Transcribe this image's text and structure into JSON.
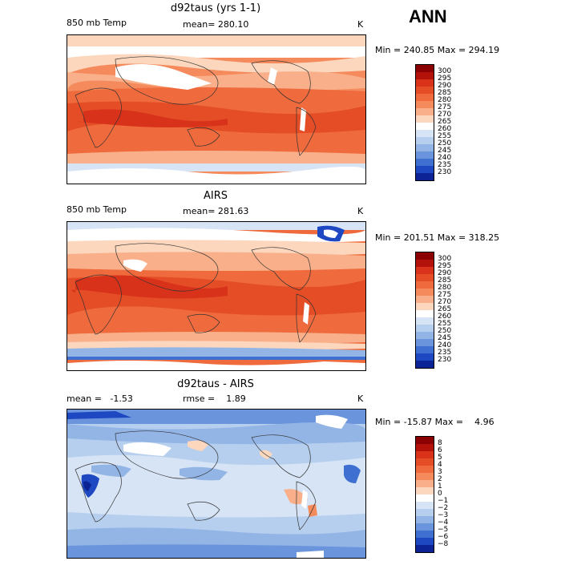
{
  "season_label": "ANN",
  "panels": [
    {
      "title": "d92taus (yrs 1-1)",
      "left_label": "850 mb Temp",
      "center_label": "mean= 280.10",
      "unit": "K",
      "minmax": "Min = 240.85 Max = 294.19",
      "colorbar": {
        "labels": [
          "300",
          "295",
          "290",
          "285",
          "280",
          "275",
          "270",
          "265",
          "260",
          "255",
          "250",
          "245",
          "240",
          "235",
          "230"
        ],
        "colors": [
          "#8b0000",
          "#b3120a",
          "#d8321a",
          "#e44d26",
          "#ef6a3c",
          "#f58a5c",
          "#f9b08a",
          "#fcd6bd",
          "#ffffff",
          "#d6e4f5",
          "#b7cfee",
          "#93b5e6",
          "#6a94dc",
          "#3f6fd1",
          "#1e47c2",
          "#0b2394"
        ]
      }
    },
    {
      "title": "AIRS",
      "left_label": "850 mb Temp",
      "center_label": "mean= 281.63",
      "unit": "K",
      "minmax": "Min = 201.51 Max = 318.25",
      "colorbar": {
        "labels": [
          "300",
          "295",
          "290",
          "285",
          "280",
          "275",
          "270",
          "265",
          "260",
          "255",
          "250",
          "245",
          "240",
          "235",
          "230"
        ],
        "colors": [
          "#8b0000",
          "#b3120a",
          "#d8321a",
          "#e44d26",
          "#ef6a3c",
          "#f58a5c",
          "#f9b08a",
          "#fcd6bd",
          "#ffffff",
          "#d6e4f5",
          "#b7cfee",
          "#93b5e6",
          "#6a94dc",
          "#3f6fd1",
          "#1e47c2",
          "#0b2394"
        ]
      }
    },
    {
      "title": "d92taus - AIRS",
      "left_label": "mean =   -1.53",
      "center_label": "rmse =    1.89",
      "unit": "K",
      "minmax": "Min = -15.87 Max =    4.96",
      "colorbar": {
        "labels": [
          "8",
          "6",
          "5",
          "4",
          "3",
          "2",
          "1",
          "0",
          "−1",
          "−2",
          "−3",
          "−4",
          "−5",
          "−6",
          "−8"
        ],
        "colors": [
          "#8b0000",
          "#b3120a",
          "#d8321a",
          "#e44d26",
          "#ef6a3c",
          "#f58a5c",
          "#f9b08a",
          "#fcd6bd",
          "#ffffff",
          "#d6e4f5",
          "#b7cfee",
          "#93b5e6",
          "#6a94dc",
          "#3f6fd1",
          "#1e47c2",
          "#0b2394"
        ]
      }
    }
  ]
}
